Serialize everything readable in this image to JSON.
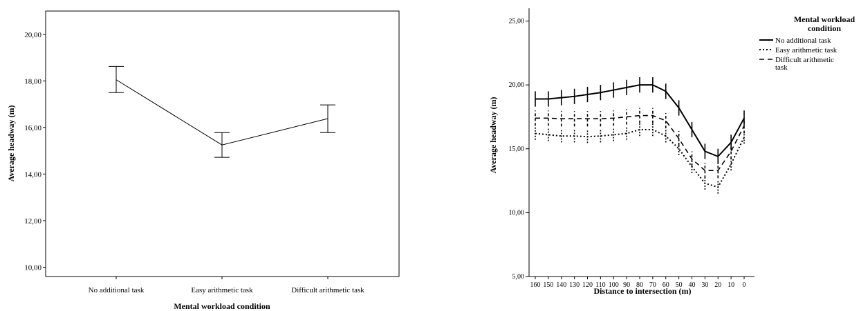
{
  "chart_data": [
    {
      "type": "line",
      "title": "",
      "xlabel": "Mental workload condition",
      "ylabel": "Average headway (m)",
      "categories": [
        "No additional task",
        "Easy arithmetic task",
        "Difficult arithmetic task"
      ],
      "ylim": [
        9.6,
        21.0
      ],
      "yticks": [
        "10,00",
        "12,00",
        "14,00",
        "16,00",
        "18,00",
        "20,00"
      ],
      "yticks_values": [
        10,
        12,
        14,
        16,
        18,
        20
      ],
      "grid": false,
      "series": [
        {
          "values": [
            18.05,
            15.25,
            16.38
          ],
          "error_low": [
            17.5,
            14.72,
            15.78
          ],
          "error_high": [
            18.62,
            15.78,
            16.97
          ]
        }
      ]
    },
    {
      "type": "line",
      "title": "",
      "xlabel": "Distance to intersection (m)",
      "ylabel": "Average headway (m)",
      "categories": [
        "160",
        "150",
        "140",
        "130",
        "120",
        "110",
        "100",
        "90",
        "80",
        "70",
        "60",
        "50",
        "40",
        "30",
        "20",
        "10",
        "0"
      ],
      "ylim": [
        5,
        26
      ],
      "yticks": [
        "5,00",
        "10,00",
        "15,00",
        "20,00",
        "25,00"
      ],
      "yticks_values": [
        5,
        10,
        15,
        20,
        25
      ],
      "grid": false,
      "legend_title": "Mental workload condition",
      "legend_position": "right",
      "series": [
        {
          "name": "No additional task",
          "style": "solid",
          "values": [
            18.9,
            18.9,
            19.0,
            19.1,
            19.25,
            19.4,
            19.6,
            19.8,
            20.0,
            20.0,
            19.5,
            18.2,
            16.5,
            14.8,
            14.4,
            15.5,
            17.4
          ],
          "error": 0.6
        },
        {
          "name": "Easy arithmetic task",
          "style": "dotted",
          "values": [
            16.2,
            16.1,
            16.0,
            16.0,
            15.95,
            16.0,
            16.1,
            16.2,
            16.5,
            16.5,
            16.0,
            15.0,
            13.6,
            12.3,
            12.0,
            13.8,
            15.9
          ],
          "error": 0.5
        },
        {
          "name": "Difficult arithmetic task",
          "style": "dashed",
          "values": [
            17.4,
            17.4,
            17.35,
            17.35,
            17.35,
            17.35,
            17.4,
            17.5,
            17.6,
            17.6,
            17.2,
            15.8,
            14.2,
            13.3,
            13.3,
            14.8,
            16.8
          ],
          "error": 0.6
        }
      ]
    }
  ]
}
